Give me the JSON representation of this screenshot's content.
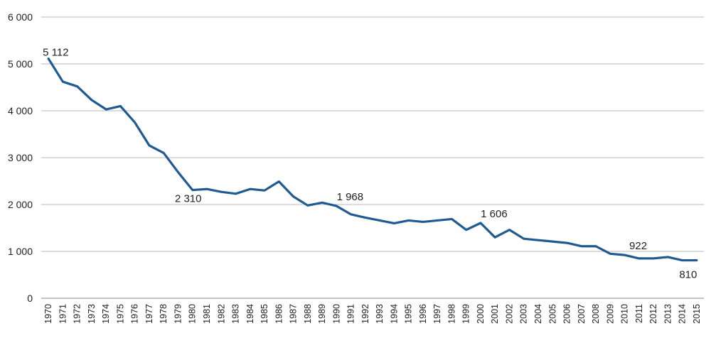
{
  "chart_data": {
    "type": "line",
    "title": "",
    "xlabel": "",
    "ylabel": "",
    "ylim": [
      0,
      6000
    ],
    "grid": true,
    "legend": "none",
    "y_ticks": [
      {
        "value": 0,
        "label": "0"
      },
      {
        "value": 1000,
        "label": "1 000"
      },
      {
        "value": 2000,
        "label": "2 000"
      },
      {
        "value": 3000,
        "label": "3 000"
      },
      {
        "value": 4000,
        "label": "4 000"
      },
      {
        "value": 5000,
        "label": "5 000"
      },
      {
        "value": 6000,
        "label": "6 000"
      }
    ],
    "categories": [
      "1970",
      "1971",
      "1972",
      "1973",
      "1974",
      "1975",
      "1976",
      "1977",
      "1978",
      "1979",
      "1980",
      "1981",
      "1982",
      "1983",
      "1984",
      "1985",
      "1986",
      "1987",
      "1988",
      "1989",
      "1990",
      "1991",
      "1992",
      "1993",
      "1994",
      "1995",
      "1996",
      "1997",
      "1998",
      "1999",
      "2000",
      "2001",
      "2002",
      "2003",
      "2004",
      "2005",
      "2006",
      "2007",
      "2008",
      "2009",
      "2010",
      "2011",
      "2012",
      "2013",
      "2014",
      "2015"
    ],
    "series": [
      {
        "color": "#1f5a92",
        "values": [
          5112,
          4620,
          4520,
          4230,
          4030,
          4100,
          3750,
          3260,
          3100,
          2690,
          2310,
          2330,
          2270,
          2230,
          2330,
          2300,
          2490,
          2170,
          1980,
          2040,
          1968,
          1790,
          1720,
          1660,
          1600,
          1660,
          1630,
          1660,
          1690,
          1460,
          1606,
          1300,
          1460,
          1270,
          1240,
          1210,
          1180,
          1110,
          1110,
          950,
          922,
          850,
          850,
          880,
          810,
          810
        ]
      }
    ],
    "annotations": [
      {
        "index": 0,
        "text": "5 112"
      },
      {
        "index": 10,
        "text": "2 310"
      },
      {
        "index": 20,
        "text": "1 968"
      },
      {
        "index": 30,
        "text": "1 606"
      },
      {
        "index": 40,
        "text": "922"
      },
      {
        "index": 45,
        "text": "810"
      }
    ]
  }
}
